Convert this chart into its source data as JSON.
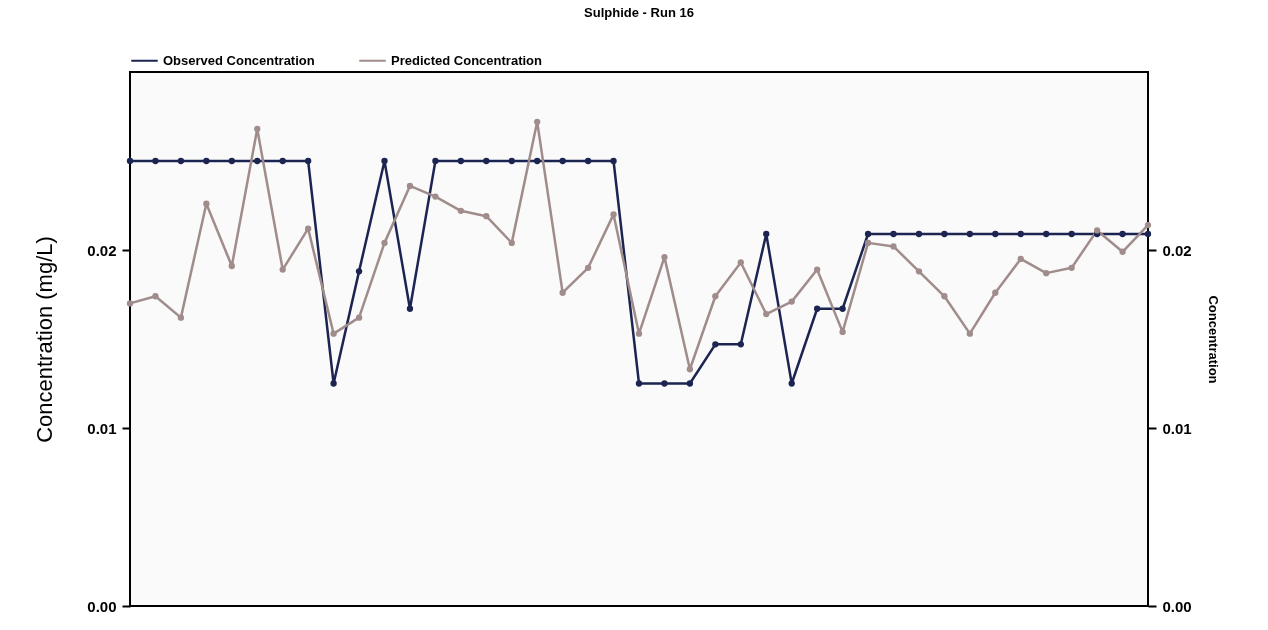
{
  "chart_data": {
    "type": "line",
    "title": "Sulphide - Run 16",
    "ylabel": "Concentration (mg/L)",
    "y2label": "Concentration",
    "categories": [
      null,
      null,
      null,
      null,
      null,
      null,
      null,
      null,
      null,
      null,
      null,
      null,
      null,
      null,
      null,
      null,
      null,
      null,
      null,
      null,
      null,
      null,
      null,
      null,
      null,
      null,
      null,
      null,
      null,
      null,
      null,
      null,
      null,
      null,
      null,
      null,
      null,
      null,
      null,
      null,
      null
    ],
    "series": [
      {
        "name": "Observed Concentration",
        "color": "#1c2452",
        "values": [
          0.025,
          0.025,
          0.025,
          0.025,
          0.025,
          0.025,
          0.025,
          0.025,
          0.0125,
          0.0188,
          0.025,
          0.0167,
          0.025,
          0.025,
          0.025,
          0.025,
          0.025,
          0.025,
          0.025,
          0.025,
          0.0125,
          0.0125,
          0.0125,
          0.0147,
          0.0147,
          0.0209,
          0.0125,
          0.0167,
          0.0167,
          0.0209,
          0.0209,
          0.0209,
          0.0209,
          0.0209,
          0.0209,
          0.0209,
          0.0209,
          0.0209,
          0.0209,
          0.0209,
          0.0209
        ]
      },
      {
        "name": "Predicted Concentration",
        "color": "#a08c8a",
        "values": [
          0.017,
          0.0174,
          0.0162,
          0.0226,
          0.0191,
          0.0268,
          0.0189,
          0.0212,
          0.0153,
          0.0162,
          0.0204,
          0.0236,
          0.023,
          0.0222,
          0.0219,
          0.0204,
          0.0272,
          0.0176,
          0.019,
          0.022,
          0.0153,
          0.0196,
          0.0133,
          0.0174,
          0.0193,
          0.0164,
          0.0171,
          0.0189,
          0.0154,
          0.0204,
          0.0202,
          0.0188,
          0.0174,
          0.0153,
          0.0176,
          0.0195,
          0.0187,
          0.019,
          0.0211,
          0.0199,
          0.0214
        ]
      }
    ],
    "ylim": [
      0,
      0.03
    ],
    "yticks": [
      {
        "value": 0,
        "label": "0.00"
      },
      0.01,
      0.02
    ],
    "y2lim": [
      0,
      0.03
    ],
    "y2ticks": [
      {
        "value": 0,
        "label": "0.00"
      },
      0.01,
      0.02
    ],
    "legend": "top",
    "marker": "circle",
    "line_style": "solid"
  }
}
